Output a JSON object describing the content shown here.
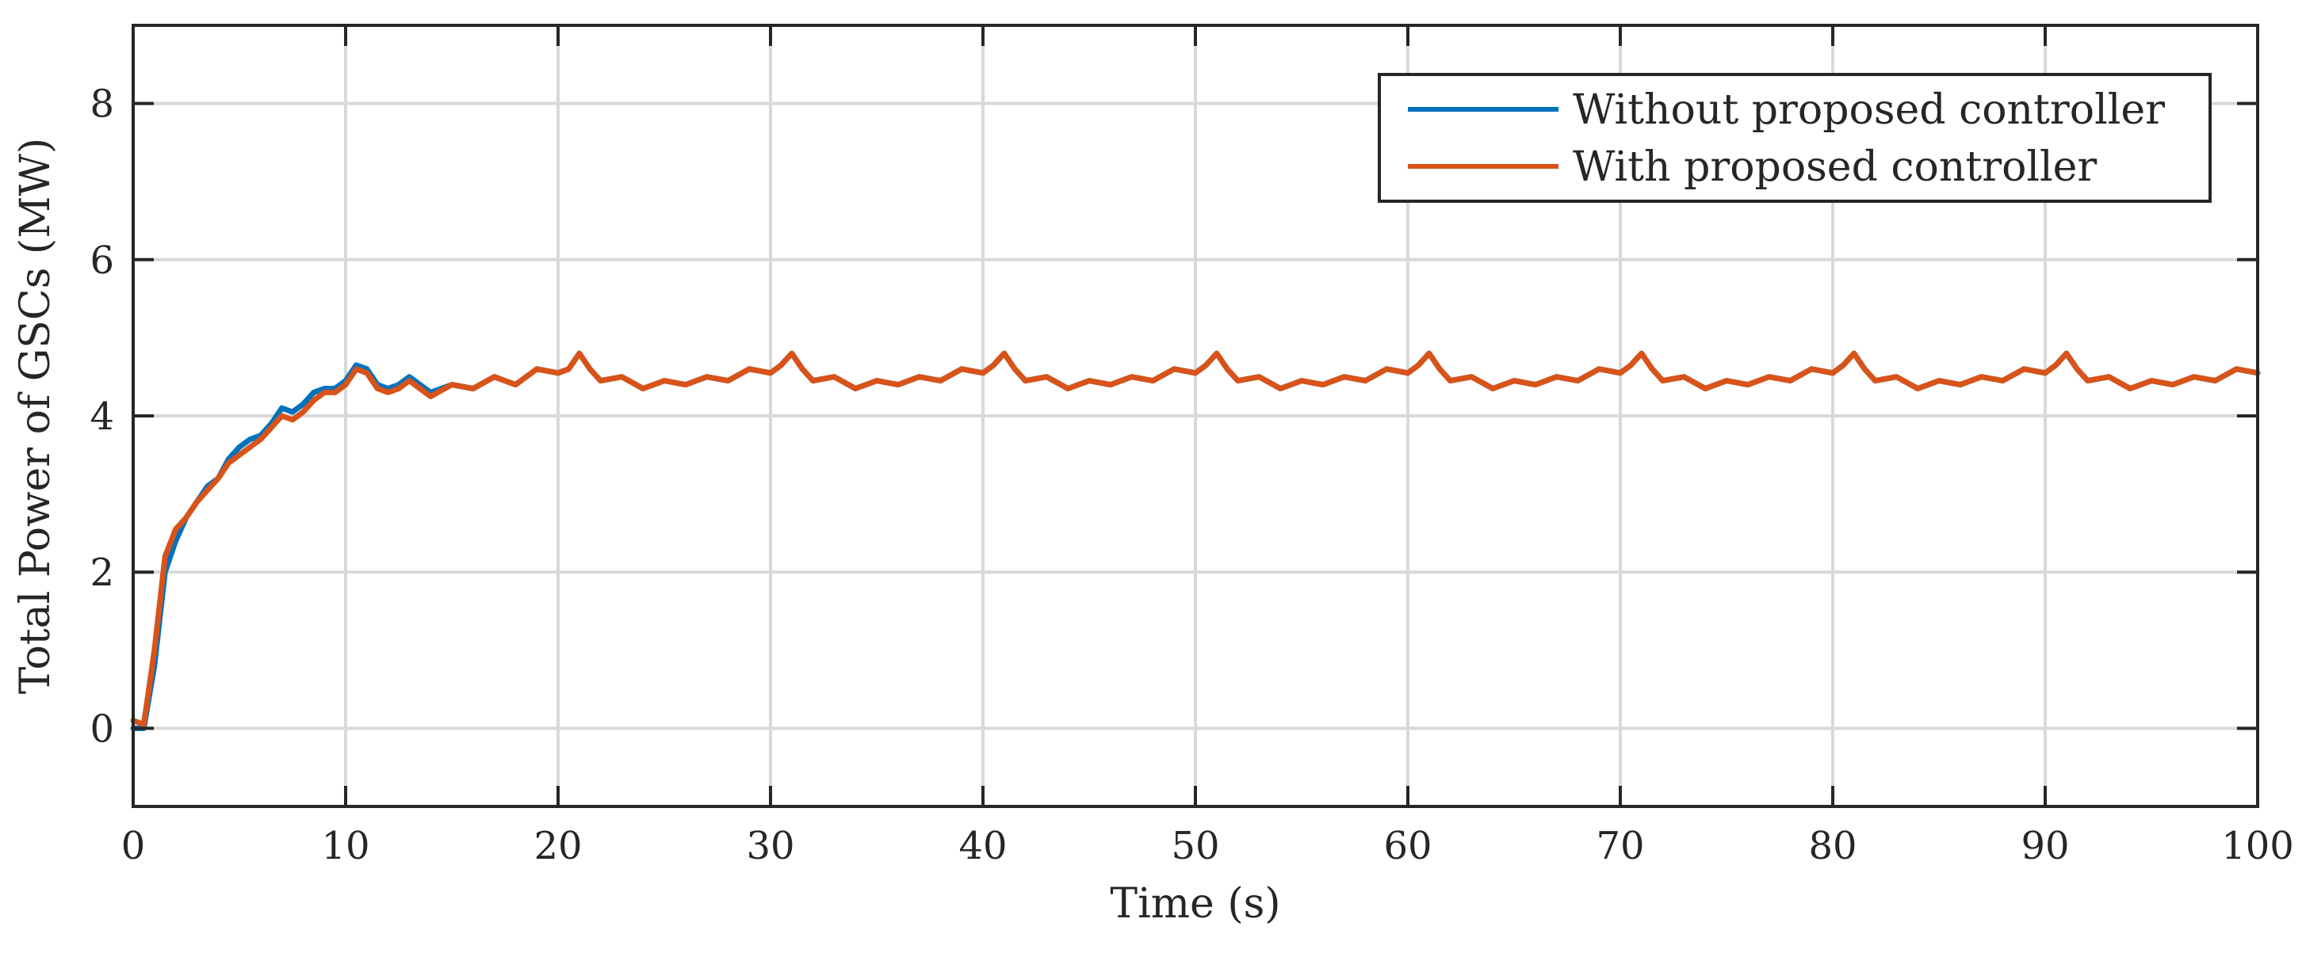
{
  "chart_data": {
    "type": "line",
    "title": "",
    "xlabel": "Time (s)",
    "ylabel": "Total Power of GSCs (MW)",
    "xlim": [
      0,
      100
    ],
    "ylim": [
      -1,
      9
    ],
    "xticks": [
      0,
      10,
      20,
      30,
      40,
      50,
      60,
      70,
      80,
      90,
      100
    ],
    "yticks": [
      0,
      2,
      4,
      6,
      8
    ],
    "grid": true,
    "legend_position": "top-right",
    "series": [
      {
        "name": "Without proposed controller",
        "color": "#0072BD",
        "x": [
          0,
          0.5,
          1,
          1.5,
          2,
          2.5,
          3,
          3.5,
          4,
          4.5,
          5,
          5.5,
          6,
          6.5,
          7,
          7.5,
          8,
          8.5,
          9,
          9.5,
          10,
          10.5,
          11,
          11.5,
          12,
          12.5,
          13,
          13.5,
          14,
          15,
          16,
          17,
          18,
          19,
          20,
          20.5,
          21,
          21.5,
          22,
          23,
          24,
          25,
          26,
          27,
          28,
          29,
          30,
          30.5,
          31,
          31.5,
          32,
          33,
          34,
          35,
          36,
          37,
          38,
          39,
          40,
          40.5,
          41,
          41.5,
          42,
          43,
          44,
          45,
          46,
          47,
          48,
          49,
          50,
          50.5,
          51,
          51.5,
          52,
          53,
          54,
          55,
          56,
          57,
          58,
          59,
          60,
          60.5,
          61,
          61.5,
          62,
          63,
          64,
          65,
          66,
          67,
          68,
          69,
          70,
          70.5,
          71,
          71.5,
          72,
          73,
          74,
          75,
          76,
          77,
          78,
          79,
          80,
          80.5,
          81,
          81.5,
          82,
          83,
          84,
          85,
          86,
          87,
          88,
          89,
          90,
          90.5,
          91,
          91.5,
          92,
          93,
          94,
          95,
          96,
          97,
          98,
          99,
          100
        ],
        "values": [
          0.0,
          0.0,
          0.8,
          2.0,
          2.4,
          2.7,
          2.9,
          3.1,
          3.2,
          3.45,
          3.6,
          3.7,
          3.75,
          3.9,
          4.1,
          4.05,
          4.15,
          4.3,
          4.35,
          4.35,
          4.45,
          4.65,
          4.6,
          4.4,
          4.35,
          4.4,
          4.5,
          4.4,
          4.3,
          4.4,
          4.35,
          4.5,
          4.4,
          4.6,
          4.55,
          4.6,
          4.8,
          4.6,
          4.45,
          4.5,
          4.35,
          4.45,
          4.4,
          4.5,
          4.45,
          4.6,
          4.55,
          4.65,
          4.8,
          4.6,
          4.45,
          4.5,
          4.35,
          4.45,
          4.4,
          4.5,
          4.45,
          4.6,
          4.55,
          4.65,
          4.8,
          4.6,
          4.45,
          4.5,
          4.35,
          4.45,
          4.4,
          4.5,
          4.45,
          4.6,
          4.55,
          4.65,
          4.8,
          4.6,
          4.45,
          4.5,
          4.35,
          4.45,
          4.4,
          4.5,
          4.45,
          4.6,
          4.55,
          4.65,
          4.8,
          4.6,
          4.45,
          4.5,
          4.35,
          4.45,
          4.4,
          4.5,
          4.45,
          4.6,
          4.55,
          4.65,
          4.8,
          4.6,
          4.45,
          4.5,
          4.35,
          4.45,
          4.4,
          4.5,
          4.45,
          4.6,
          4.55,
          4.65,
          4.8,
          4.6,
          4.45,
          4.5,
          4.35,
          4.45,
          4.4,
          4.5,
          4.45,
          4.6,
          4.55,
          4.65,
          4.8,
          4.6,
          4.45,
          4.5,
          4.35,
          4.45,
          4.4,
          4.5,
          4.45,
          4.6,
          4.55
        ]
      },
      {
        "name": "With proposed controller",
        "color": "#D95319",
        "x": [
          0,
          0.5,
          1,
          1.5,
          2,
          2.5,
          3,
          3.5,
          4,
          4.5,
          5,
          5.5,
          6,
          6.5,
          7,
          7.5,
          8,
          8.5,
          9,
          9.5,
          10,
          10.5,
          11,
          11.5,
          12,
          12.5,
          13,
          13.5,
          14,
          15,
          16,
          17,
          18,
          19,
          20,
          20.5,
          21,
          21.5,
          22,
          23,
          24,
          25,
          26,
          27,
          28,
          29,
          30,
          30.5,
          31,
          31.5,
          32,
          33,
          34,
          35,
          36,
          37,
          38,
          39,
          40,
          40.5,
          41,
          41.5,
          42,
          43,
          44,
          45,
          46,
          47,
          48,
          49,
          50,
          50.5,
          51,
          51.5,
          52,
          53,
          54,
          55,
          56,
          57,
          58,
          59,
          60,
          60.5,
          61,
          61.5,
          62,
          63,
          64,
          65,
          66,
          67,
          68,
          69,
          70,
          70.5,
          71,
          71.5,
          72,
          73,
          74,
          75,
          76,
          77,
          78,
          79,
          80,
          80.5,
          81,
          81.5,
          82,
          83,
          84,
          85,
          86,
          87,
          88,
          89,
          90,
          90.5,
          91,
          91.5,
          92,
          93,
          94,
          95,
          96,
          97,
          98,
          99,
          100
        ],
        "values": [
          0.1,
          0.05,
          1.0,
          2.2,
          2.55,
          2.7,
          2.9,
          3.05,
          3.2,
          3.4,
          3.5,
          3.6,
          3.7,
          3.85,
          4.0,
          3.95,
          4.05,
          4.2,
          4.3,
          4.3,
          4.4,
          4.6,
          4.55,
          4.35,
          4.3,
          4.35,
          4.45,
          4.35,
          4.25,
          4.4,
          4.35,
          4.5,
          4.4,
          4.6,
          4.55,
          4.6,
          4.8,
          4.6,
          4.45,
          4.5,
          4.35,
          4.45,
          4.4,
          4.5,
          4.45,
          4.6,
          4.55,
          4.65,
          4.8,
          4.6,
          4.45,
          4.5,
          4.35,
          4.45,
          4.4,
          4.5,
          4.45,
          4.6,
          4.55,
          4.65,
          4.8,
          4.6,
          4.45,
          4.5,
          4.35,
          4.45,
          4.4,
          4.5,
          4.45,
          4.6,
          4.55,
          4.65,
          4.8,
          4.6,
          4.45,
          4.5,
          4.35,
          4.45,
          4.4,
          4.5,
          4.45,
          4.6,
          4.55,
          4.65,
          4.8,
          4.6,
          4.45,
          4.5,
          4.35,
          4.45,
          4.4,
          4.5,
          4.45,
          4.6,
          4.55,
          4.65,
          4.8,
          4.6,
          4.45,
          4.5,
          4.35,
          4.45,
          4.4,
          4.5,
          4.45,
          4.6,
          4.55,
          4.65,
          4.8,
          4.6,
          4.45,
          4.5,
          4.35,
          4.45,
          4.4,
          4.5,
          4.45,
          4.6,
          4.55,
          4.65,
          4.8,
          4.6,
          4.45,
          4.5,
          4.35,
          4.45,
          4.4,
          4.5,
          4.45,
          4.6,
          4.55
        ]
      }
    ]
  }
}
